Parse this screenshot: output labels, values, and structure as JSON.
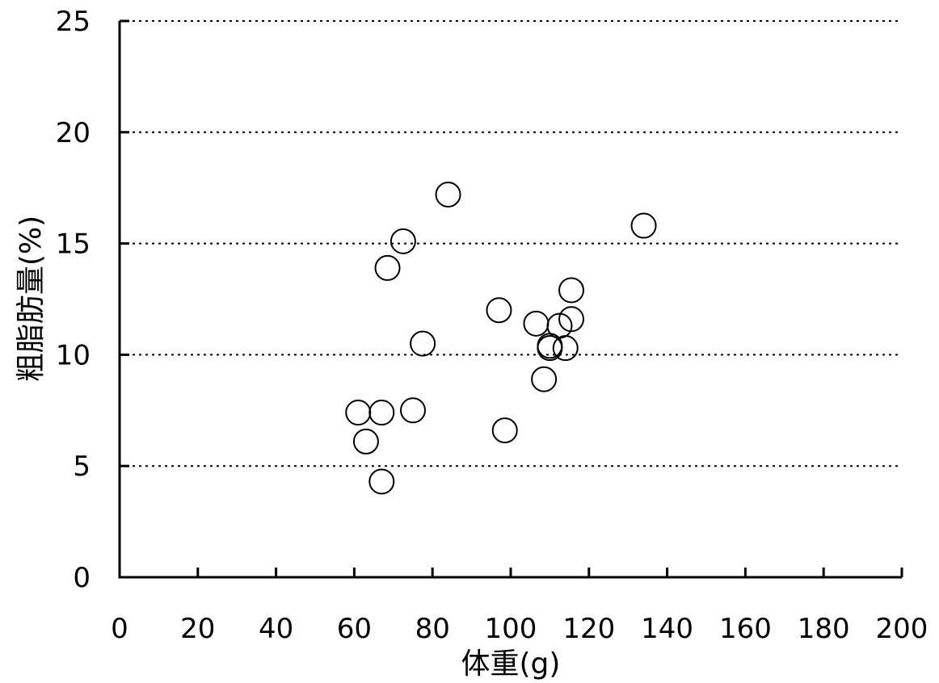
{
  "chart_data": {
    "type": "scatter",
    "title": "",
    "xlabel": "体重(g)",
    "ylabel": "粗脂肪量(%)",
    "xlim": [
      0,
      200
    ],
    "ylim": [
      0,
      25
    ],
    "x_ticks": [
      0,
      20,
      40,
      60,
      80,
      100,
      120,
      140,
      160,
      180,
      200
    ],
    "y_ticks": [
      0,
      5,
      10,
      15,
      20,
      25
    ],
    "x_tick_labels": [
      "0",
      "20",
      "40",
      "60",
      "80",
      "100",
      "120",
      "140",
      "160",
      "180",
      "200"
    ],
    "y_tick_labels": [
      "0",
      "5",
      "10",
      "15",
      "20",
      "25"
    ],
    "grid": "horizontal-dotted",
    "marker": "open-circle",
    "series": [
      {
        "points": [
          {
            "x": 61,
            "y": 7.4
          },
          {
            "x": 63,
            "y": 6.1
          },
          {
            "x": 67,
            "y": 7.4
          },
          {
            "x": 67,
            "y": 4.3
          },
          {
            "x": 68.5,
            "y": 13.9
          },
          {
            "x": 72.5,
            "y": 15.1
          },
          {
            "x": 75,
            "y": 7.5
          },
          {
            "x": 77.5,
            "y": 10.5
          },
          {
            "x": 84,
            "y": 17.2
          },
          {
            "x": 97,
            "y": 12.0
          },
          {
            "x": 98.5,
            "y": 6.6
          },
          {
            "x": 106.5,
            "y": 11.4
          },
          {
            "x": 108.5,
            "y": 8.9
          },
          {
            "x": 110,
            "y": 10.3
          },
          {
            "x": 110,
            "y": 10.4
          },
          {
            "x": 112.5,
            "y": 11.3
          },
          {
            "x": 114,
            "y": 10.3
          },
          {
            "x": 115.5,
            "y": 12.9
          },
          {
            "x": 115.5,
            "y": 11.6
          },
          {
            "x": 134,
            "y": 15.8
          }
        ]
      }
    ]
  }
}
